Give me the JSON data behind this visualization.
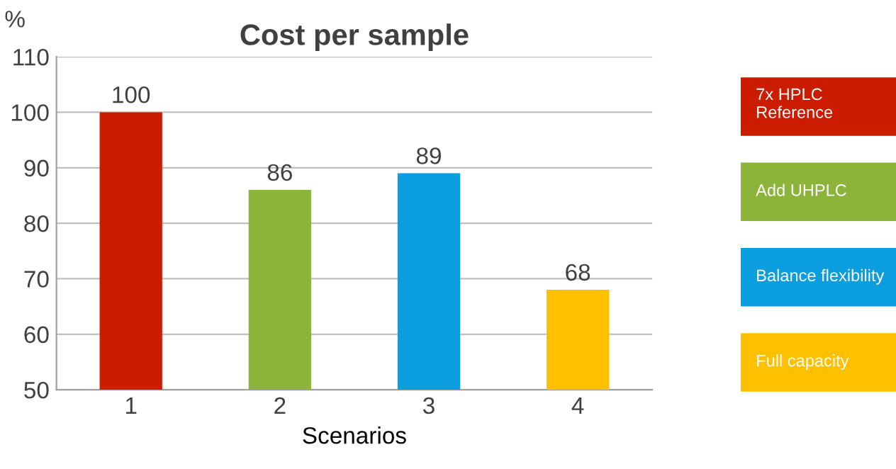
{
  "chart_data": {
    "type": "bar",
    "title": "Cost per sample",
    "xlabel": "Scenarios",
    "ylabel": "%",
    "categories": [
      "1",
      "2",
      "3",
      "4"
    ],
    "series": [
      {
        "name": "7x HPLC\nReference",
        "color": "#cc1c00",
        "values": [
          100,
          null,
          null,
          null
        ]
      },
      {
        "name": "Add UHPLC",
        "color": "#8cb43a",
        "values": [
          null,
          86,
          null,
          null
        ]
      },
      {
        "name": "Balance flexibility",
        "color": "#0b9ede",
        "values": [
          null,
          null,
          89,
          null
        ]
      },
      {
        "name": "Full capacity",
        "color": "#ffc000",
        "values": [
          null,
          null,
          null,
          68
        ]
      }
    ],
    "ylim": [
      50,
      110
    ],
    "yticks": [
      50,
      60,
      70,
      80,
      90,
      100,
      110
    ],
    "grid": "y",
    "legend": "right",
    "data_labels": true
  }
}
